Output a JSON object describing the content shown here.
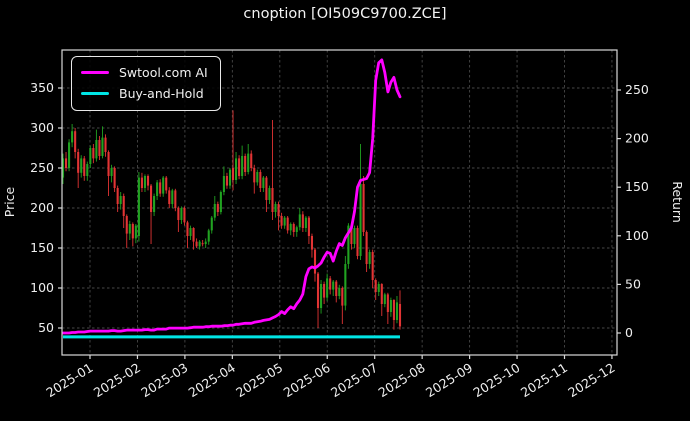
{
  "title": "cnoption [OI509C9700.ZCE]",
  "colors": {
    "background": "#000000",
    "text": "#efefef",
    "frame": "#d9d9d9",
    "grid": "#474747",
    "ai_line": "#ff00ff",
    "bh_line": "#00e5e5",
    "candle_up": "#21a321",
    "candle_down": "#e23434"
  },
  "legend": {
    "items": [
      {
        "label": "Swtool.com AI",
        "color": "#ff00ff"
      },
      {
        "label": "Buy-and-Hold",
        "color": "#00e5e5"
      }
    ]
  },
  "axes": {
    "left": {
      "label": "Price",
      "ticks": [
        50,
        100,
        150,
        200,
        250,
        300,
        350
      ],
      "ylim": [
        16,
        398
      ]
    },
    "right": {
      "label": "Return",
      "ticks": [
        0,
        50,
        100,
        150,
        200,
        250
      ],
      "ylim": [
        -23,
        291
      ]
    },
    "x": {
      "tick_labels": [
        "2025-01",
        "2025-02",
        "2025-03",
        "2025-04",
        "2025-05",
        "2025-06",
        "2025-07",
        "2025-08",
        "2025-09",
        "2025-10",
        "2025-11",
        "2025-12"
      ]
    }
  },
  "chart_data": {
    "type": "candlestick+line",
    "title": "cnoption [OI509C9700.ZCE]",
    "x_range_note": "daily bars from late 2024-12 through late 2025-07; x axis extends to 2025-12",
    "grid": "dashed",
    "legend_position": "upper-left",
    "series": [
      {
        "name": "Price",
        "type": "candlestick",
        "axis": "left",
        "ohlc": [
          [
            238,
            268,
            230,
            262
          ],
          [
            262,
            270,
            246,
            250
          ],
          [
            250,
            286,
            246,
            282
          ],
          [
            282,
            305,
            276,
            296
          ],
          [
            296,
            300,
            262,
            270
          ],
          [
            270,
            274,
            225,
            244
          ],
          [
            244,
            266,
            238,
            262
          ],
          [
            262,
            265,
            234,
            240
          ],
          [
            240,
            258,
            234,
            255
          ],
          [
            255,
            278,
            250,
            275
          ],
          [
            275,
            280,
            256,
            262
          ],
          [
            262,
            298,
            258,
            285
          ],
          [
            285,
            290,
            260,
            265
          ],
          [
            265,
            302,
            262,
            288
          ],
          [
            288,
            292,
            264,
            270
          ],
          [
            270,
            272,
            215,
            240
          ],
          [
            240,
            254,
            232,
            250
          ],
          [
            250,
            252,
            220,
            225
          ],
          [
            225,
            228,
            195,
            205
          ],
          [
            205,
            220,
            198,
            215
          ],
          [
            215,
            218,
            175,
            190
          ],
          [
            190,
            192,
            150,
            168
          ],
          [
            168,
            184,
            160,
            180
          ],
          [
            180,
            182,
            152,
            162
          ],
          [
            162,
            180,
            156,
            178
          ],
          [
            165,
            245,
            158,
            238
          ],
          [
            238,
            244,
            220,
            225
          ],
          [
            225,
            242,
            220,
            240
          ],
          [
            240,
            242,
            222,
            228
          ],
          [
            228,
            230,
            155,
            195
          ],
          [
            195,
            218,
            190,
            215
          ],
          [
            215,
            235,
            210,
            232
          ],
          [
            232,
            236,
            214,
            218
          ],
          [
            218,
            240,
            214,
            238
          ],
          [
            238,
            240,
            218,
            222
          ],
          [
            222,
            226,
            200,
            205
          ],
          [
            205,
            224,
            200,
            222
          ],
          [
            222,
            224,
            196,
            200
          ],
          [
            200,
            202,
            170,
            185
          ],
          [
            185,
            202,
            180,
            200
          ],
          [
            200,
            202,
            178,
            182
          ],
          [
            182,
            184,
            150,
            165
          ],
          [
            165,
            178,
            160,
            175
          ],
          [
            175,
            176,
            148,
            158
          ],
          [
            158,
            162,
            150,
            152
          ],
          [
            152,
            160,
            148,
            158
          ],
          [
            156,
            160,
            152,
            155
          ],
          [
            155,
            162,
            150,
            158
          ],
          [
            158,
            174,
            154,
            172
          ],
          [
            172,
            190,
            168,
            188
          ],
          [
            188,
            215,
            184,
            205
          ],
          [
            205,
            208,
            190,
            195
          ],
          [
            195,
            222,
            192,
            220
          ],
          [
            220,
            252,
            216,
            240
          ],
          [
            240,
            244,
            224,
            228
          ],
          [
            228,
            250,
            224,
            248
          ],
          [
            250,
            322,
            222,
            235
          ],
          [
            235,
            270,
            230,
            262
          ],
          [
            262,
            266,
            236,
            240
          ],
          [
            240,
            278,
            236,
            265
          ],
          [
            265,
            268,
            240,
            245
          ],
          [
            245,
            280,
            242,
            268
          ],
          [
            268,
            272,
            246,
            250
          ],
          [
            250,
            254,
            218,
            232
          ],
          [
            232,
            248,
            228,
            245
          ],
          [
            245,
            248,
            220,
            225
          ],
          [
            225,
            240,
            220,
            238
          ],
          [
            238,
            240,
            195,
            210
          ],
          [
            210,
            228,
            205,
            225
          ],
          [
            225,
            310,
            185,
            195
          ],
          [
            195,
            208,
            188,
            205
          ],
          [
            205,
            208,
            172,
            190
          ],
          [
            190,
            194,
            174,
            178
          ],
          [
            178,
            190,
            174,
            188
          ],
          [
            188,
            190,
            168,
            172
          ],
          [
            172,
            182,
            166,
            180
          ],
          [
            180,
            182,
            164,
            170
          ],
          [
            170,
            178,
            164,
            176
          ],
          [
            176,
            200,
            172,
            192
          ],
          [
            192,
            196,
            170,
            175
          ],
          [
            175,
            190,
            170,
            188
          ],
          [
            188,
            190,
            155,
            165
          ],
          [
            165,
            168,
            138,
            148
          ],
          [
            148,
            150,
            108,
            118
          ],
          [
            118,
            120,
            50,
            75
          ],
          [
            75,
            110,
            68,
            105
          ],
          [
            105,
            108,
            80,
            88
          ],
          [
            88,
            118,
            84,
            112
          ],
          [
            112,
            115,
            92,
            98
          ],
          [
            98,
            110,
            90,
            108
          ],
          [
            108,
            110,
            82,
            90
          ],
          [
            90,
            104,
            86,
            100
          ],
          [
            100,
            102,
            55,
            78
          ],
          [
            78,
            140,
            72,
            130
          ],
          [
            130,
            181,
            124,
            178
          ],
          [
            178,
            180,
            148,
            155
          ],
          [
            155,
            178,
            150,
            175
          ],
          [
            175,
            178,
            136,
            140
          ],
          [
            140,
            280,
            135,
            230
          ],
          [
            230,
            240,
            165,
            170
          ],
          [
            170,
            172,
            120,
            130
          ],
          [
            130,
            148,
            124,
            145
          ],
          [
            145,
            148,
            100,
            110
          ],
          [
            110,
            112,
            85,
            95
          ],
          [
            95,
            108,
            90,
            105
          ],
          [
            105,
            106,
            65,
            80
          ],
          [
            80,
            94,
            76,
            92
          ],
          [
            92,
            94,
            55,
            70
          ],
          [
            70,
            88,
            64,
            85
          ],
          [
            85,
            86,
            48,
            60
          ],
          [
            60,
            90,
            56,
            82
          ],
          [
            80,
            97,
            48,
            52
          ]
        ]
      },
      {
        "name": "Swtool.com AI",
        "type": "line",
        "axis": "right",
        "values": [
          0,
          0,
          0,
          0.5,
          0.5,
          1,
          1,
          1,
          1.5,
          2,
          2,
          2,
          2,
          2,
          2,
          2,
          2.5,
          2.5,
          2,
          2,
          2.5,
          3,
          3,
          3,
          3,
          3,
          3,
          3.5,
          3.5,
          3,
          3,
          4,
          4,
          4,
          4,
          5,
          5,
          5,
          5,
          5,
          5,
          5,
          5.5,
          6,
          6,
          6,
          6,
          6.5,
          6.5,
          7,
          7,
          7,
          7,
          7.5,
          7.5,
          8,
          8,
          9,
          9,
          9.5,
          10,
          10,
          10,
          11,
          11.5,
          12,
          13,
          13.5,
          14,
          15.5,
          17,
          19,
          22,
          20,
          24,
          27,
          25,
          30,
          34,
          40,
          58,
          66,
          68,
          67,
          69,
          72,
          78,
          83,
          82,
          74,
          84,
          92,
          90,
          98,
          103,
          108,
          125,
          150,
          157,
          158,
          159,
          165,
          200,
          260,
          278,
          281,
          268,
          248,
          258,
          263,
          250,
          243
        ]
      },
      {
        "name": "Buy-and-Hold",
        "type": "line",
        "axis": "right",
        "flat_value": -4
      }
    ]
  }
}
